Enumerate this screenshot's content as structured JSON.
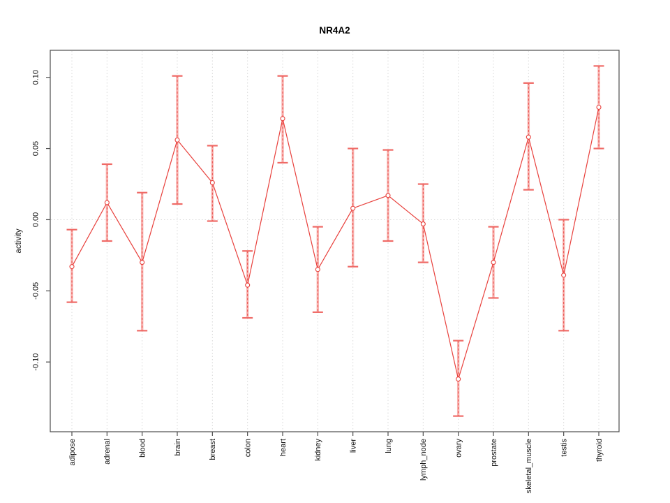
{
  "figure": {
    "background_color": "#ffffff"
  },
  "chart_data": {
    "type": "line",
    "title": "NR4A2",
    "xlabel": "",
    "ylabel": "activity",
    "legend": "none",
    "grid": {
      "vertical_gridlines": "dotted, one per category",
      "zero_line": "dotted horizontal at 0.00"
    },
    "categories": [
      "adipose",
      "adrenal",
      "blood",
      "brain",
      "breast",
      "colon",
      "heart",
      "kidney",
      "liver",
      "lung",
      "lymph_node",
      "ovary",
      "prostate",
      "skeletal_muscle",
      "testis",
      "thyroid"
    ],
    "values": [
      -0.033,
      0.012,
      -0.03,
      0.056,
      0.026,
      -0.046,
      0.071,
      -0.035,
      0.008,
      0.017,
      -0.003,
      -0.112,
      -0.03,
      0.058,
      -0.039,
      0.079
    ],
    "error_low": [
      -0.058,
      -0.015,
      -0.078,
      0.011,
      -0.001,
      -0.069,
      0.04,
      -0.065,
      -0.033,
      -0.015,
      -0.03,
      -0.138,
      -0.055,
      0.021,
      -0.078,
      0.05
    ],
    "error_high": [
      -0.007,
      0.039,
      0.019,
      0.101,
      0.052,
      -0.022,
      0.101,
      -0.005,
      0.05,
      0.049,
      0.025,
      -0.085,
      -0.005,
      0.096,
      0.0,
      0.108
    ],
    "yticks": [
      0.1,
      0.05,
      0.0,
      -0.05,
      -0.1
    ],
    "ytick_labels": [
      "0.10",
      "0.05",
      "0.00",
      "-0.05",
      "-0.10"
    ],
    "ylim": [
      -0.149,
      0.119
    ],
    "marker": "open-circle",
    "colors": {
      "series": "#e8403c",
      "error_band": "#f79a96",
      "error_cap": "#ef6a66",
      "grid": "#d9d9d9",
      "axis": "#4d4d4d",
      "text": "#111111"
    }
  }
}
